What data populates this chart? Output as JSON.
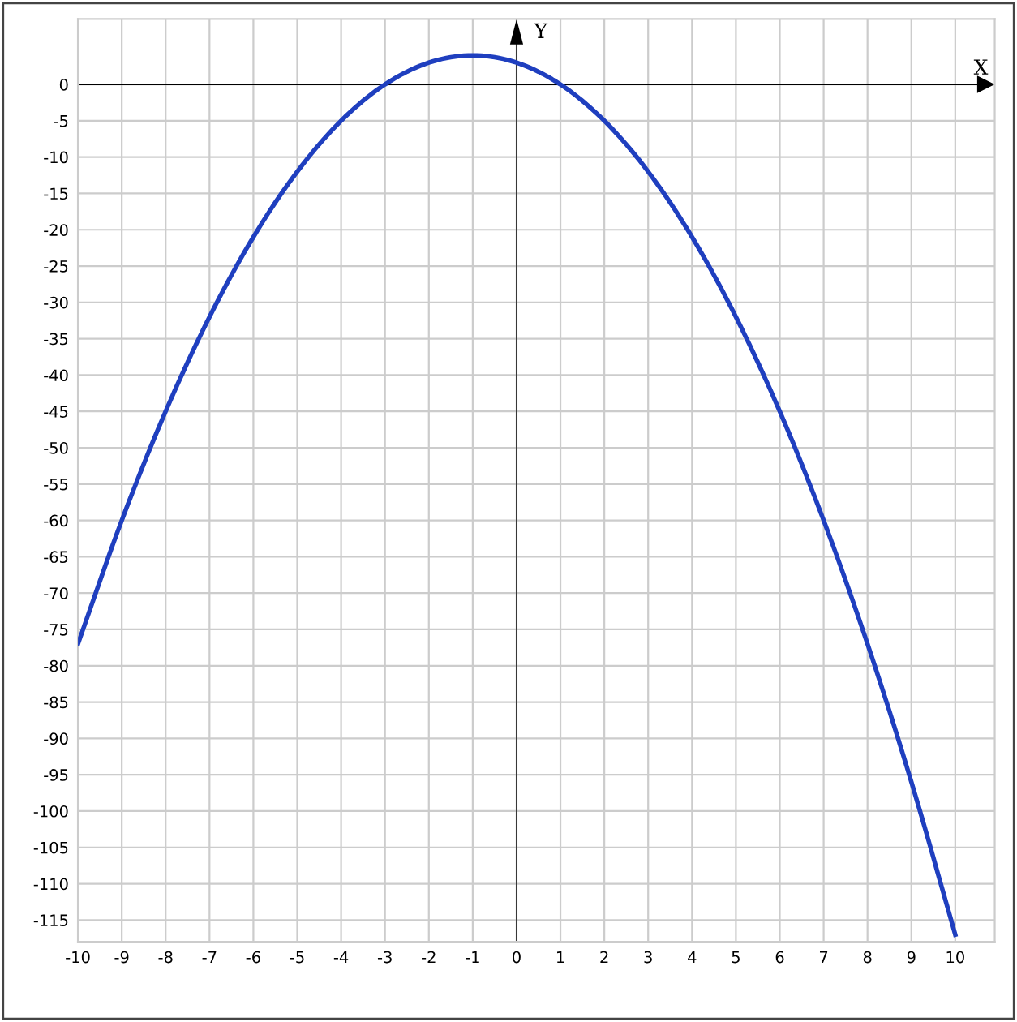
{
  "chart_data": {
    "type": "line",
    "xlabel": "X",
    "ylabel": "Y",
    "x": [
      -10,
      -9,
      -8,
      -7,
      -6,
      -5,
      -4,
      -3,
      -2,
      -1,
      0,
      1,
      2,
      3,
      4,
      5,
      6,
      7,
      8,
      9,
      10
    ],
    "series": [
      {
        "color": "#1f3fbf",
        "values": [
          -77,
          -60,
          -45,
          -32,
          -21,
          -12,
          -5,
          0,
          3,
          4,
          3,
          0,
          -5,
          -12,
          -21,
          -32,
          -45,
          -60,
          -77,
          -96,
          -117
        ]
      }
    ],
    "xlim": [
      -10,
      10.9
    ],
    "ylim": [
      -118,
      9
    ],
    "xticks": [
      -10,
      -9,
      -8,
      -7,
      -6,
      -5,
      -4,
      -3,
      -2,
      -1,
      0,
      1,
      2,
      3,
      4,
      5,
      6,
      7,
      8,
      9,
      10
    ],
    "yticks": [
      0,
      -5,
      -10,
      -15,
      -20,
      -25,
      -30,
      -35,
      -40,
      -45,
      -50,
      -55,
      -60,
      -65,
      -70,
      -75,
      -80,
      -85,
      -90,
      -95,
      -100,
      -105,
      -110,
      -115
    ],
    "grid": true,
    "marker": "none",
    "line_style": "solid"
  }
}
